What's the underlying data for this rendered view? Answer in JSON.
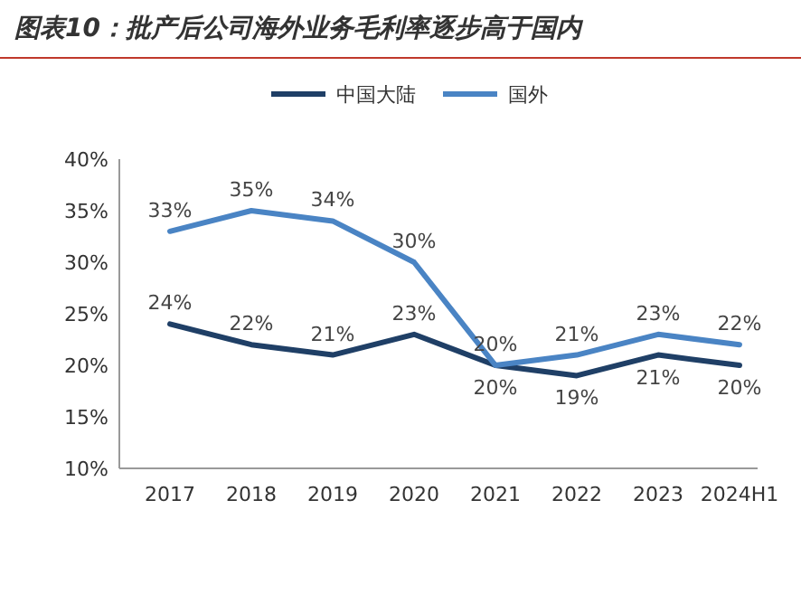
{
  "chart_data": {
    "type": "line",
    "title": "图表10：批产后公司海外业务毛利率逐步高于国内",
    "categories": [
      "2017",
      "2018",
      "2019",
      "2020",
      "2021",
      "2022",
      "2023",
      "2024H1"
    ],
    "series": [
      {
        "name": "中国大陆",
        "color": "#1f3f66",
        "values": [
          24,
          22,
          21,
          23,
          20,
          19,
          21,
          20
        ],
        "value_labels": [
          "24%",
          "22%",
          "21%",
          "23%",
          "20%",
          "19%",
          "21%",
          "20%"
        ]
      },
      {
        "name": "国外",
        "color": "#4a84c4",
        "values": [
          33,
          35,
          34,
          30,
          20,
          21,
          23,
          22
        ],
        "value_labels": [
          "33%",
          "35%",
          "34%",
          "30%",
          "20%",
          "21%",
          "23%",
          "22%"
        ]
      }
    ],
    "ylim": [
      10,
      40
    ],
    "yticks": [
      {
        "value": 10,
        "label": "10%"
      },
      {
        "value": 15,
        "label": "15%"
      },
      {
        "value": 20,
        "label": "20%"
      },
      {
        "value": 25,
        "label": "25%"
      },
      {
        "value": 30,
        "label": "30%"
      },
      {
        "value": 35,
        "label": "35%"
      },
      {
        "value": 40,
        "label": "40%"
      }
    ],
    "legend": "top",
    "grid": false,
    "marker": "none",
    "line_style": "solid"
  }
}
